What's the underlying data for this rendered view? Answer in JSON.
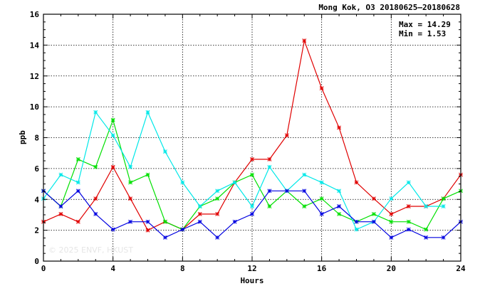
{
  "chart_data": {
    "type": "line",
    "title": "Mong Kok, O3 20180625—20180628",
    "xlabel": "Hours",
    "ylabel": "ppb",
    "xlim": [
      0,
      24
    ],
    "ylim": [
      0,
      16
    ],
    "xticks": [
      0,
      4,
      8,
      12,
      16,
      20,
      24
    ],
    "yticks": [
      0,
      2,
      4,
      6,
      8,
      10,
      12,
      14,
      16
    ],
    "grid": true,
    "stats": {
      "max_label": "Max = 14.29",
      "min_label": "Min =  1.53"
    },
    "watermark": "© 2025  ENVF, HKUST",
    "x": [
      0,
      1,
      2,
      3,
      4,
      5,
      6,
      7,
      8,
      9,
      10,
      11,
      12,
      13,
      14,
      15,
      16,
      17,
      18,
      19,
      20,
      21,
      22,
      23,
      24
    ],
    "series": [
      {
        "color": "#e00000",
        "values": [
          2.55,
          3.05,
          2.55,
          4.05,
          6.1,
          4.05,
          2.0,
          2.55,
          2.05,
          3.05,
          3.05,
          5.1,
          6.6,
          6.6,
          8.15,
          14.29,
          11.2,
          8.65,
          5.1,
          4.05,
          3.05,
          3.55,
          3.55,
          4.05,
          5.6
        ]
      },
      {
        "color": "#00e000",
        "values": [
          4.55,
          3.55,
          6.6,
          6.1,
          9.15,
          5.1,
          5.6,
          2.55,
          2.05,
          3.55,
          4.05,
          5.1,
          5.6,
          3.55,
          4.55,
          3.55,
          4.05,
          3.05,
          2.55,
          3.05,
          2.55,
          2.55,
          2.05,
          4.05,
          4.55
        ]
      },
      {
        "color": "#00e8e8",
        "values": [
          4.05,
          5.6,
          5.1,
          9.65,
          8.15,
          6.1,
          9.65,
          7.1,
          5.1,
          3.55,
          4.55,
          5.1,
          3.55,
          6.1,
          4.55,
          5.6,
          5.1,
          4.55,
          2.05,
          2.55,
          4.05,
          5.1,
          3.55,
          3.55,
          null
        ]
      },
      {
        "color": "#0000e0",
        "values": [
          4.55,
          3.55,
          4.55,
          3.05,
          2.05,
          2.55,
          2.55,
          1.53,
          2.05,
          2.55,
          1.53,
          2.55,
          3.05,
          4.55,
          4.55,
          4.55,
          3.05,
          3.55,
          2.55,
          2.55,
          1.53,
          2.05,
          1.53,
          1.53,
          2.55
        ]
      }
    ]
  }
}
